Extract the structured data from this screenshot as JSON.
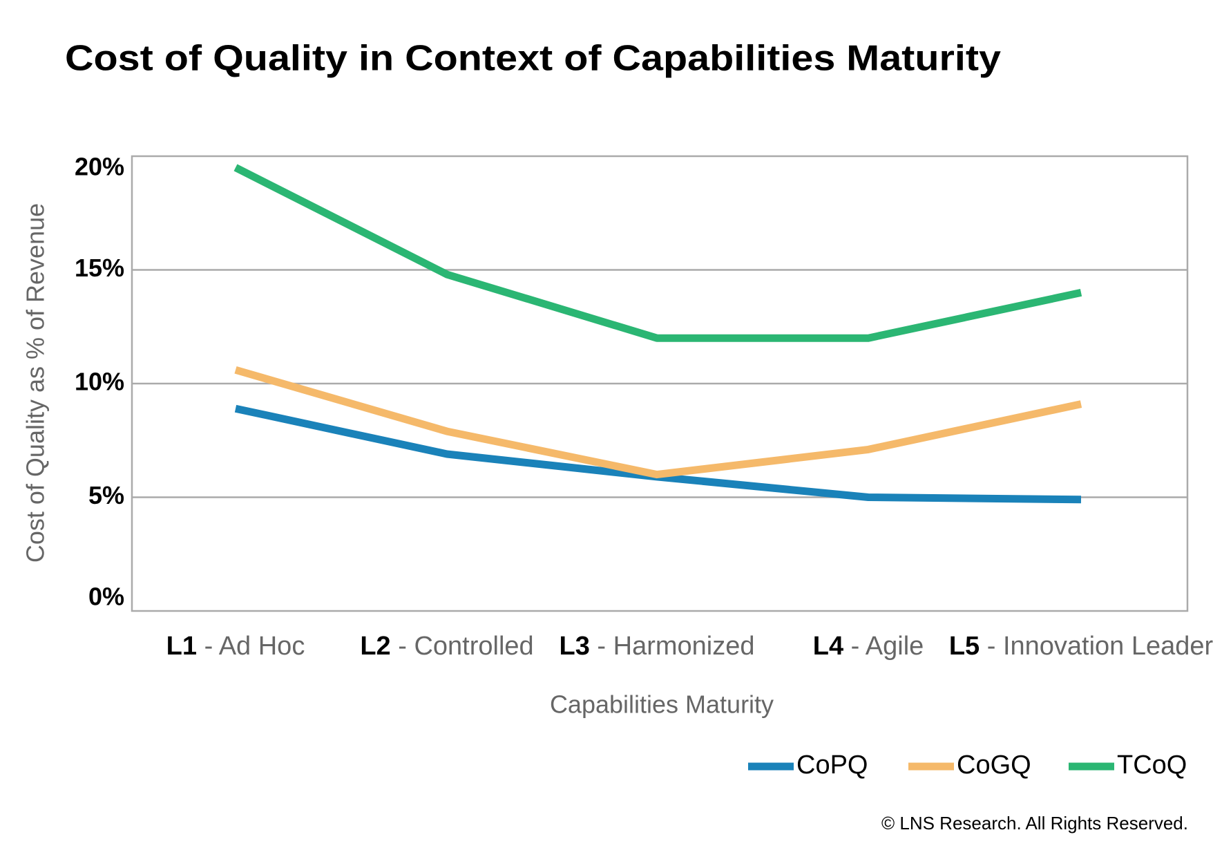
{
  "chart_data": {
    "type": "line",
    "title": "Cost of Quality in Context of Capabilities Maturity",
    "x_label": "Capabilities Maturity",
    "y_label": "Cost of Quality as % of Revenue",
    "categories": [
      "L1 - Ad Hoc",
      "L2 - Controlled",
      "L3 - Harmonized",
      "L4 - Agile",
      "L5 - Innovation Leader"
    ],
    "series": [
      {
        "name": "CoPQ",
        "color": "#1a82b9",
        "values": [
          8.9,
          6.9,
          5.9,
          5.0,
          4.9
        ]
      },
      {
        "name": "CoGQ",
        "color": "#f5b96a",
        "values": [
          10.6,
          7.9,
          6.0,
          7.1,
          9.1
        ]
      },
      {
        "name": "TCoQ",
        "color": "#2bb673",
        "values": [
          19.5,
          14.8,
          12.0,
          12.0,
          14.0
        ]
      }
    ],
    "ylim": [
      0,
      20
    ],
    "yticks": [
      {
        "value": 0,
        "label": "0%"
      },
      {
        "value": 5,
        "label": "5%"
      },
      {
        "value": 10,
        "label": "10%"
      },
      {
        "value": 15,
        "label": "15%"
      },
      {
        "value": 20,
        "label": "20%"
      }
    ],
    "grid": true,
    "legend": "bottom-right",
    "footnote": "© LNS Research. All Rights Reserved."
  }
}
